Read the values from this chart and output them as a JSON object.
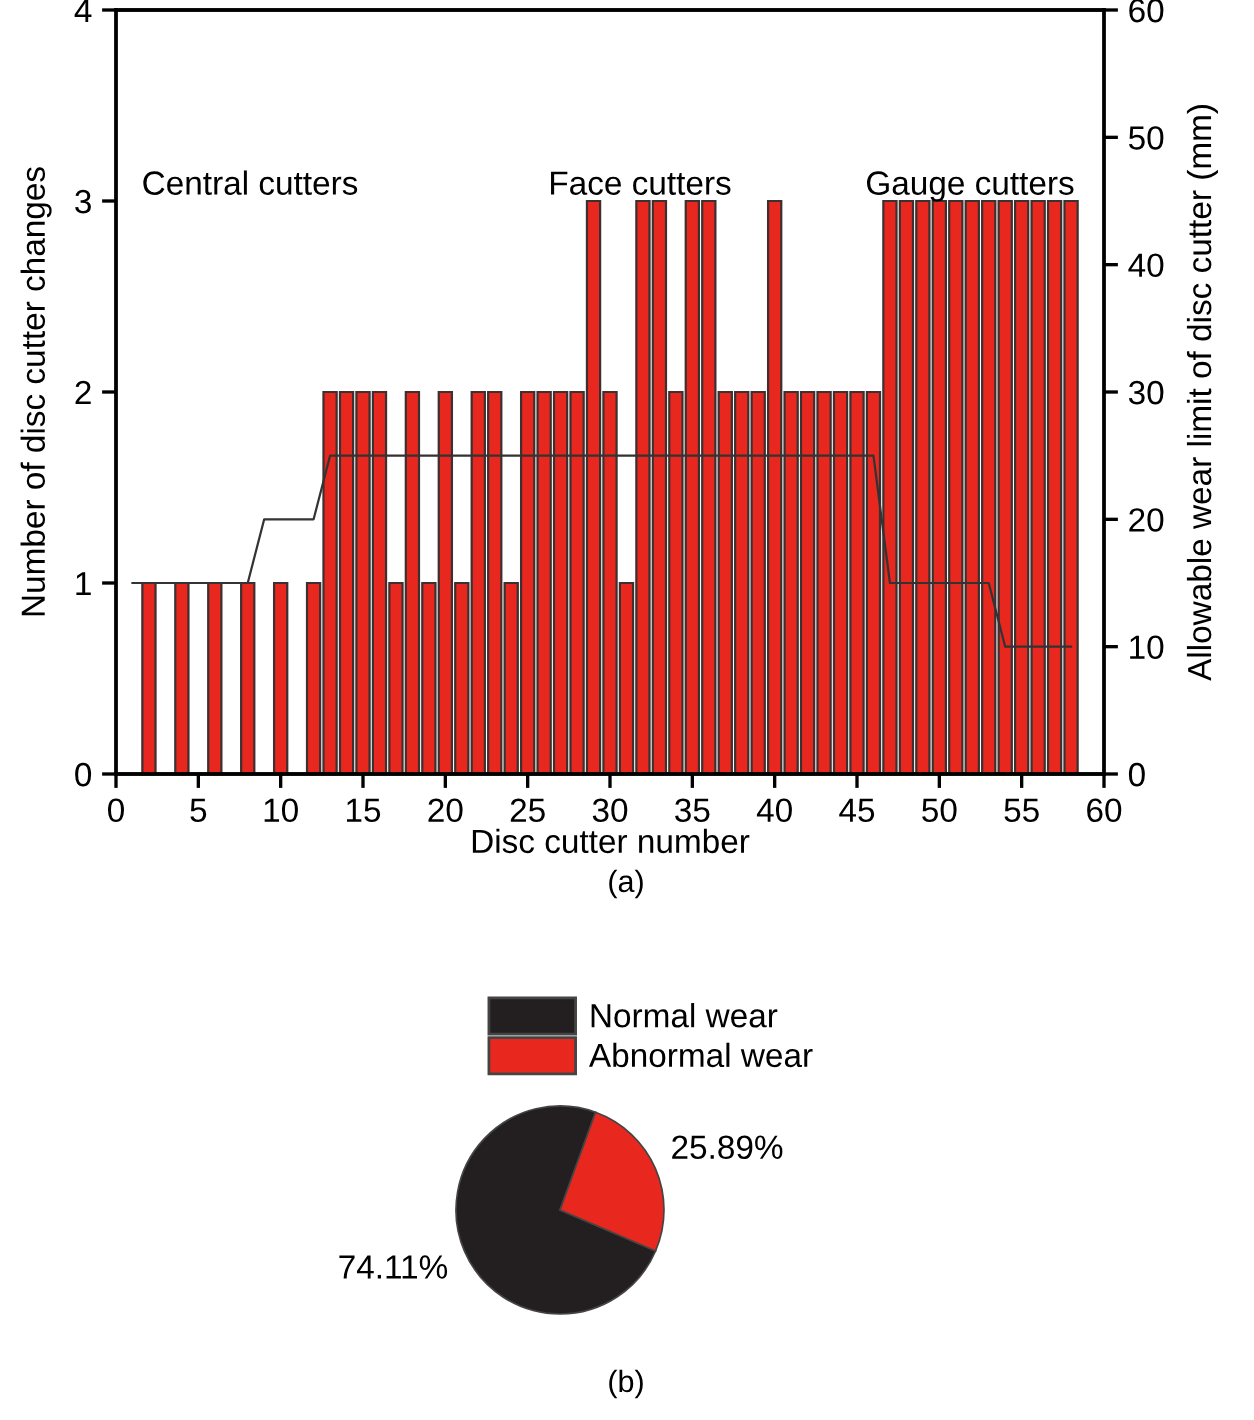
{
  "chart_data": [
    {
      "type": "bar",
      "xlabel": "Disc cutter number",
      "ylabel": "Number of disc cutter changes",
      "y2label": "Allowable wear limit of disc cutter (mm)",
      "xlim": [
        0,
        60
      ],
      "xticks": [
        0,
        5,
        10,
        15,
        20,
        25,
        30,
        35,
        40,
        45,
        50,
        55,
        60
      ],
      "ylim": [
        0,
        4
      ],
      "yticks": [
        0,
        1,
        2,
        3,
        4
      ],
      "y2lim": [
        0,
        60
      ],
      "y2ticks": [
        0,
        10,
        20,
        30,
        40,
        50,
        60
      ],
      "grid": false,
      "series": [
        {
          "type": "bar",
          "color": "#e8281f",
          "x": [
            2,
            4,
            6,
            8,
            10,
            12,
            13,
            14,
            15,
            16,
            17,
            18,
            19,
            20,
            21,
            22,
            23,
            24,
            25,
            26,
            27,
            28,
            29,
            30,
            31,
            32,
            33,
            34,
            35,
            36,
            37,
            38,
            39,
            40,
            41,
            42,
            43,
            44,
            45,
            46,
            47,
            48,
            49,
            50,
            51,
            52,
            53,
            54,
            55,
            56,
            57,
            58
          ],
          "values": [
            1,
            1,
            1,
            1,
            1,
            1,
            2,
            2,
            2,
            2,
            1,
            2,
            1,
            2,
            1,
            2,
            2,
            1,
            2,
            2,
            2,
            2,
            3,
            2,
            1,
            3,
            3,
            2,
            3,
            3,
            2,
            2,
            2,
            3,
            2,
            2,
            2,
            2,
            2,
            2,
            3,
            3,
            3,
            3,
            3,
            3,
            3,
            3,
            3,
            3,
            3,
            3
          ]
        },
        {
          "type": "line",
          "axis": "y2",
          "color": "#333333",
          "x": [
            1,
            8,
            9,
            12,
            13,
            46,
            47,
            53,
            54,
            58
          ],
          "values": [
            15,
            15,
            20,
            20,
            25,
            25,
            15,
            15,
            10,
            10
          ]
        }
      ],
      "annotations": [
        "Central cutters",
        "Face cutters",
        "Gauge cutters",
        "(a)"
      ]
    },
    {
      "type": "pie",
      "categories": [
        "Normal wear",
        "Abnormal wear"
      ],
      "values": [
        74.11,
        25.89
      ],
      "colors": [
        "#231f20",
        "#e8281f"
      ],
      "value_labels": [
        "74.11%",
        "25.89%"
      ],
      "legend": "top right",
      "annotations": [
        "(b)"
      ]
    }
  ]
}
